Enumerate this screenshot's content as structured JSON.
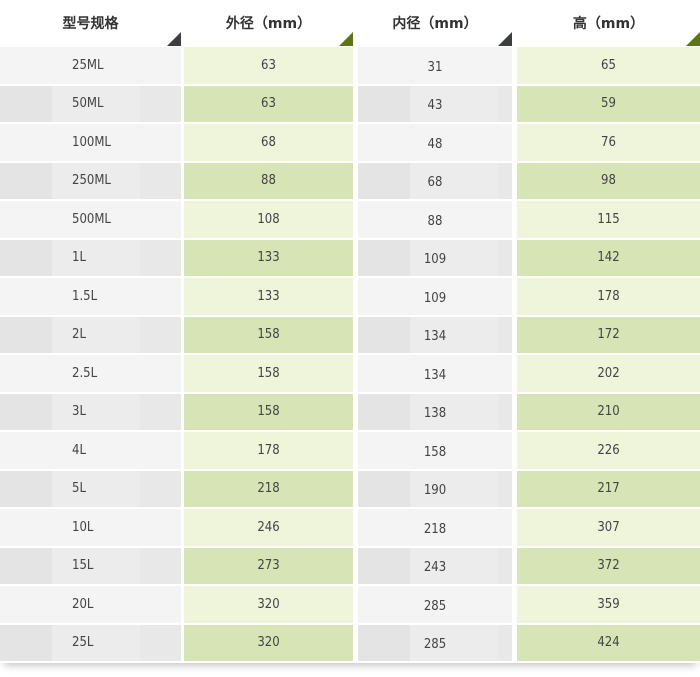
{
  "headers": [
    "型号规格",
    "外径（mm）",
    "内径（mm）",
    "高（mm）"
  ],
  "colors": {
    "header_marker_dark": "#3b3d3f",
    "header_marker_green": "#5e7418",
    "green_light": "#eef5da",
    "green_dark": "#d7e4b6",
    "gray_light": "#f4f4f4",
    "gray_dark": "#e8e8e8"
  },
  "rows": [
    [
      "25ML",
      "63",
      "31",
      "65"
    ],
    [
      "50ML",
      "63",
      "43",
      "59"
    ],
    [
      "100ML",
      "68",
      "48",
      "76"
    ],
    [
      "250ML",
      "88",
      "68",
      "98"
    ],
    [
      "500ML",
      "108",
      "88",
      "115"
    ],
    [
      "1L",
      "133",
      "109",
      "142"
    ],
    [
      "1.5L",
      "133",
      "109",
      "178"
    ],
    [
      "2L",
      "158",
      "134",
      "172"
    ],
    [
      "2.5L",
      "158",
      "134",
      "202"
    ],
    [
      "3L",
      "158",
      "138",
      "210"
    ],
    [
      "4L",
      "178",
      "158",
      "226"
    ],
    [
      "5L",
      "218",
      "190",
      "217"
    ],
    [
      "10L",
      "246",
      "218",
      "307"
    ],
    [
      "15L",
      "273",
      "243",
      "372"
    ],
    [
      "20L",
      "320",
      "285",
      "359"
    ],
    [
      "25L",
      "320",
      "285",
      "424"
    ]
  ]
}
